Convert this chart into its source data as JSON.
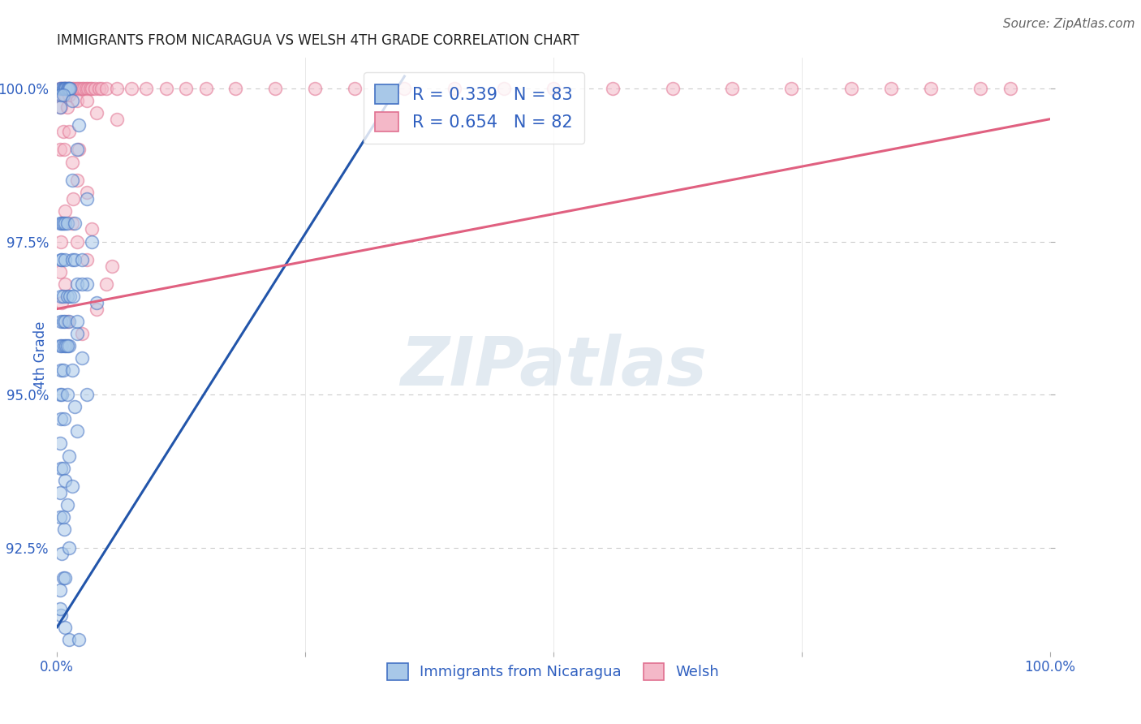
{
  "title": "IMMIGRANTS FROM NICARAGUA VS WELSH 4TH GRADE CORRELATION CHART",
  "source": "Source: ZipAtlas.com",
  "ylabel": "4th Grade",
  "watermark": "ZIPatlas",
  "xlim": [
    0.0,
    1.0
  ],
  "ylim": [
    0.908,
    1.005
  ],
  "xticks": [
    0.0,
    0.25,
    0.5,
    0.75,
    1.0
  ],
  "xticklabels": [
    "0.0%",
    "",
    "",
    "",
    "100.0%"
  ],
  "ytick_positions": [
    0.925,
    0.95,
    0.975,
    1.0
  ],
  "ytick_labels": [
    "92.5%",
    "95.0%",
    "97.5%",
    "100.0%"
  ],
  "grid_color": "#cccccc",
  "background_color": "#ffffff",
  "blue_fill": "#a8c8e8",
  "blue_edge": "#4472c4",
  "pink_fill": "#f4b8c8",
  "pink_edge": "#e07090",
  "blue_line_color": "#2255aa",
  "pink_line_color": "#e06080",
  "R_blue": 0.339,
  "N_blue": 83,
  "R_pink": 0.654,
  "N_pink": 82,
  "legend_label_blue": "Immigrants from Nicaragua",
  "legend_label_pink": "Welsh",
  "title_fontsize": 12,
  "label_color": "#3060c0",
  "blue_trend_x": [
    0.0,
    0.35
  ],
  "blue_trend_y": [
    0.912,
    1.002
  ],
  "pink_trend_x": [
    0.0,
    1.0
  ],
  "pink_trend_y": [
    0.964,
    0.995
  ],
  "blue_scatter": [
    [
      0.003,
      1.0
    ],
    [
      0.005,
      1.0
    ],
    [
      0.006,
      1.0
    ],
    [
      0.007,
      1.0
    ],
    [
      0.008,
      1.0
    ],
    [
      0.009,
      1.0
    ],
    [
      0.01,
      1.0
    ],
    [
      0.011,
      1.0
    ],
    [
      0.012,
      1.0
    ],
    [
      0.013,
      1.0
    ],
    [
      0.004,
      0.999
    ],
    [
      0.006,
      0.999
    ],
    [
      0.003,
      0.997
    ],
    [
      0.015,
      0.998
    ],
    [
      0.022,
      0.994
    ],
    [
      0.03,
      0.982
    ],
    [
      0.003,
      0.978
    ],
    [
      0.005,
      0.978
    ],
    [
      0.006,
      0.978
    ],
    [
      0.008,
      0.978
    ],
    [
      0.01,
      0.978
    ],
    [
      0.004,
      0.972
    ],
    [
      0.005,
      0.972
    ],
    [
      0.008,
      0.972
    ],
    [
      0.015,
      0.972
    ],
    [
      0.018,
      0.972
    ],
    [
      0.025,
      0.972
    ],
    [
      0.035,
      0.975
    ],
    [
      0.02,
      0.968
    ],
    [
      0.004,
      0.966
    ],
    [
      0.006,
      0.966
    ],
    [
      0.01,
      0.966
    ],
    [
      0.013,
      0.966
    ],
    [
      0.016,
      0.966
    ],
    [
      0.03,
      0.968
    ],
    [
      0.004,
      0.962
    ],
    [
      0.006,
      0.962
    ],
    [
      0.008,
      0.962
    ],
    [
      0.012,
      0.962
    ],
    [
      0.003,
      0.958
    ],
    [
      0.005,
      0.958
    ],
    [
      0.007,
      0.958
    ],
    [
      0.009,
      0.958
    ],
    [
      0.012,
      0.958
    ],
    [
      0.004,
      0.954
    ],
    [
      0.006,
      0.954
    ],
    [
      0.003,
      0.95
    ],
    [
      0.005,
      0.95
    ],
    [
      0.004,
      0.946
    ],
    [
      0.007,
      0.946
    ],
    [
      0.003,
      0.942
    ],
    [
      0.004,
      0.938
    ],
    [
      0.006,
      0.938
    ],
    [
      0.003,
      0.934
    ],
    [
      0.003,
      0.93
    ],
    [
      0.01,
      0.958
    ],
    [
      0.02,
      0.96
    ],
    [
      0.015,
      0.954
    ],
    [
      0.025,
      0.956
    ],
    [
      0.01,
      0.95
    ],
    [
      0.018,
      0.948
    ],
    [
      0.02,
      0.944
    ],
    [
      0.012,
      0.94
    ],
    [
      0.008,
      0.936
    ],
    [
      0.01,
      0.932
    ],
    [
      0.007,
      0.928
    ],
    [
      0.005,
      0.924
    ],
    [
      0.006,
      0.92
    ],
    [
      0.003,
      0.918
    ],
    [
      0.004,
      0.914
    ],
    [
      0.008,
      0.912
    ],
    [
      0.006,
      0.93
    ],
    [
      0.015,
      0.935
    ],
    [
      0.012,
      0.925
    ],
    [
      0.008,
      0.92
    ],
    [
      0.003,
      0.915
    ],
    [
      0.02,
      0.962
    ],
    [
      0.025,
      0.968
    ],
    [
      0.018,
      0.978
    ],
    [
      0.015,
      0.985
    ],
    [
      0.02,
      0.99
    ],
    [
      0.04,
      0.965
    ],
    [
      0.012,
      0.91
    ],
    [
      0.022,
      0.91
    ],
    [
      0.03,
      0.95
    ]
  ],
  "pink_scatter": [
    [
      0.003,
      1.0
    ],
    [
      0.005,
      1.0
    ],
    [
      0.007,
      1.0
    ],
    [
      0.009,
      1.0
    ],
    [
      0.011,
      1.0
    ],
    [
      0.013,
      1.0
    ],
    [
      0.015,
      1.0
    ],
    [
      0.017,
      1.0
    ],
    [
      0.019,
      1.0
    ],
    [
      0.021,
      1.0
    ],
    [
      0.023,
      1.0
    ],
    [
      0.025,
      1.0
    ],
    [
      0.027,
      1.0
    ],
    [
      0.029,
      1.0
    ],
    [
      0.031,
      1.0
    ],
    [
      0.033,
      1.0
    ],
    [
      0.035,
      1.0
    ],
    [
      0.038,
      1.0
    ],
    [
      0.042,
      1.0
    ],
    [
      0.045,
      1.0
    ],
    [
      0.05,
      1.0
    ],
    [
      0.06,
      1.0
    ],
    [
      0.075,
      1.0
    ],
    [
      0.09,
      1.0
    ],
    [
      0.11,
      1.0
    ],
    [
      0.13,
      1.0
    ],
    [
      0.15,
      1.0
    ],
    [
      0.18,
      1.0
    ],
    [
      0.22,
      1.0
    ],
    [
      0.26,
      1.0
    ],
    [
      0.3,
      1.0
    ],
    [
      0.35,
      1.0
    ],
    [
      0.4,
      1.0
    ],
    [
      0.45,
      1.0
    ],
    [
      0.5,
      1.0
    ],
    [
      0.56,
      1.0
    ],
    [
      0.62,
      1.0
    ],
    [
      0.68,
      1.0
    ],
    [
      0.74,
      1.0
    ],
    [
      0.8,
      1.0
    ],
    [
      0.84,
      1.0
    ],
    [
      0.88,
      1.0
    ],
    [
      0.93,
      1.0
    ],
    [
      0.96,
      1.0
    ],
    [
      0.004,
      0.999
    ],
    [
      0.008,
      0.999
    ],
    [
      0.012,
      0.999
    ],
    [
      0.02,
      0.998
    ],
    [
      0.03,
      0.998
    ],
    [
      0.004,
      0.997
    ],
    [
      0.01,
      0.997
    ],
    [
      0.04,
      0.996
    ],
    [
      0.06,
      0.995
    ],
    [
      0.006,
      0.993
    ],
    [
      0.012,
      0.993
    ],
    [
      0.003,
      0.99
    ],
    [
      0.007,
      0.99
    ],
    [
      0.015,
      0.988
    ],
    [
      0.02,
      0.985
    ],
    [
      0.03,
      0.983
    ],
    [
      0.008,
      0.98
    ],
    [
      0.015,
      0.978
    ],
    [
      0.02,
      0.975
    ],
    [
      0.03,
      0.972
    ],
    [
      0.003,
      0.97
    ],
    [
      0.008,
      0.968
    ],
    [
      0.05,
      0.968
    ],
    [
      0.005,
      0.965
    ],
    [
      0.04,
      0.964
    ],
    [
      0.01,
      0.962
    ],
    [
      0.025,
      0.96
    ],
    [
      0.004,
      0.975
    ],
    [
      0.016,
      0.982
    ],
    [
      0.022,
      0.99
    ],
    [
      0.035,
      0.977
    ],
    [
      0.055,
      0.971
    ]
  ]
}
